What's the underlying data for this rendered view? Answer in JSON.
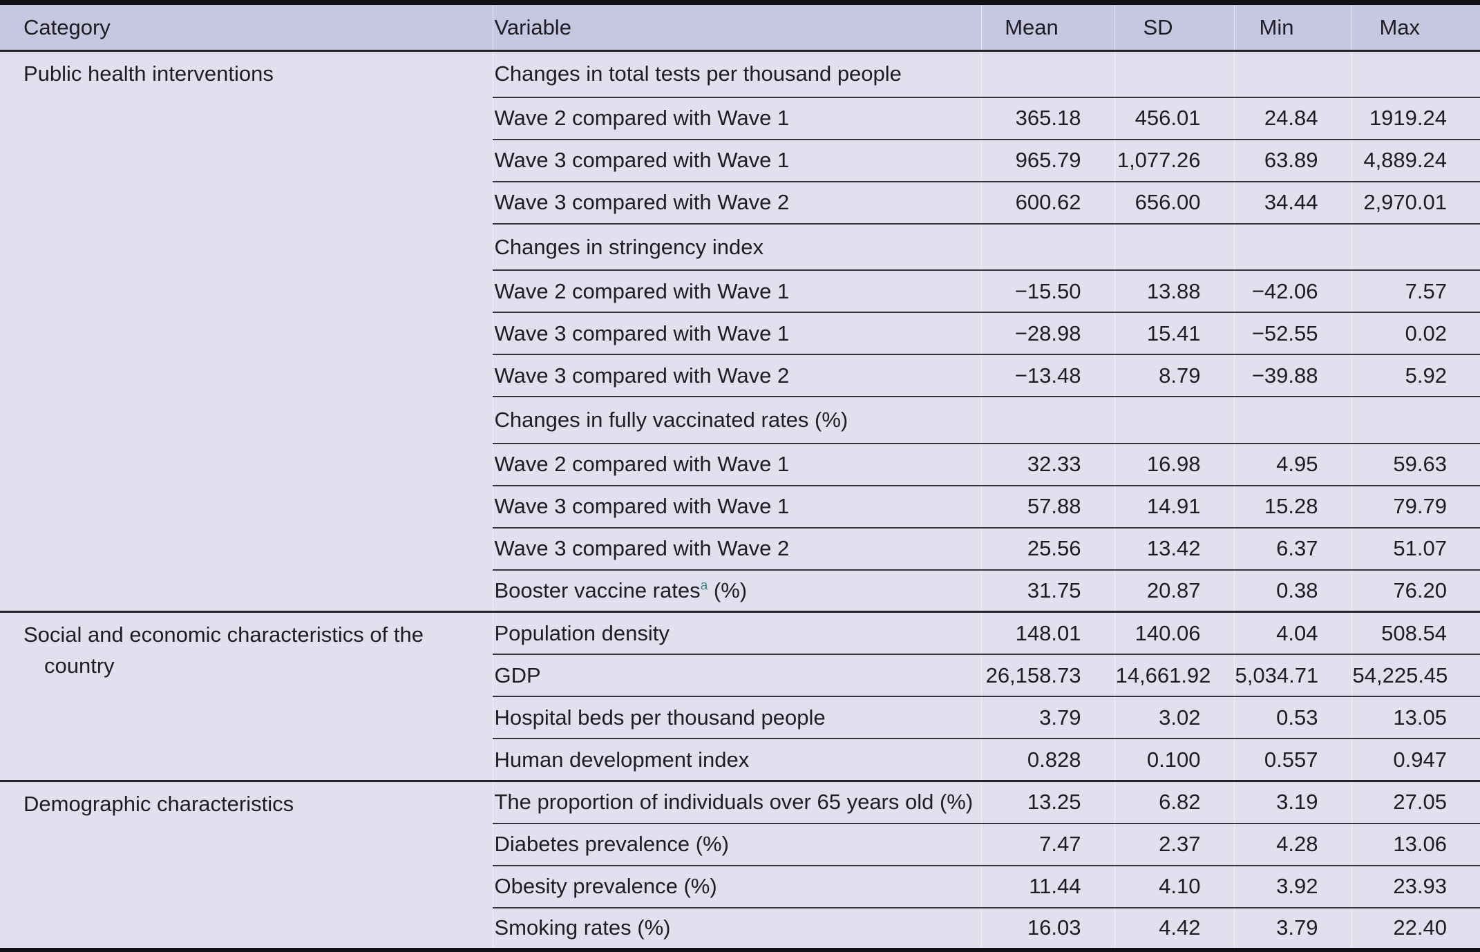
{
  "table": {
    "columns": [
      "Category",
      "Variable",
      "Mean",
      "SD",
      "Min",
      "Max"
    ],
    "colors": {
      "header_bg": "#c7c7e1",
      "body_bg": "#e0e0ef",
      "thick_border": "#121216",
      "section_rule": "#24242a",
      "row_rule": "#34343c",
      "text": "#1d1d22",
      "superscript": "#3f8786"
    },
    "sections": [
      {
        "category": "Public health interventions",
        "rows": [
          {
            "variable": "Changes in total tests per thousand people",
            "group": true,
            "mean": "",
            "sd": "",
            "min": "",
            "max": ""
          },
          {
            "variable": "Wave 2 compared with Wave 1",
            "mean": "365.18",
            "sd": "456.01",
            "min": "24.84",
            "max": "1919.24"
          },
          {
            "variable": "Wave 3 compared with Wave 1",
            "mean": "965.79",
            "sd": "1,077.26",
            "min": "63.89",
            "max": "4,889.24"
          },
          {
            "variable": "Wave 3 compared with Wave 2",
            "mean": "600.62",
            "sd": "656.00",
            "min": "34.44",
            "max": "2,970.01"
          },
          {
            "variable": "Changes in stringency index",
            "group": true,
            "mean": "",
            "sd": "",
            "min": "",
            "max": ""
          },
          {
            "variable": "Wave 2 compared with Wave 1",
            "mean": "−15.50",
            "sd": "13.88",
            "min": "−42.06",
            "max": "7.57"
          },
          {
            "variable": "Wave 3 compared with Wave 1",
            "mean": "−28.98",
            "sd": "15.41",
            "min": "−52.55",
            "max": "0.02"
          },
          {
            "variable": "Wave 3 compared with Wave 2",
            "mean": "−13.48",
            "sd": "8.79",
            "min": "−39.88",
            "max": "5.92"
          },
          {
            "variable": "Changes in fully vaccinated rates (%)",
            "group": true,
            "mean": "",
            "sd": "",
            "min": "",
            "max": ""
          },
          {
            "variable": "Wave 2 compared with Wave 1",
            "mean": "32.33",
            "sd": "16.98",
            "min": "4.95",
            "max": "59.63"
          },
          {
            "variable": "Wave 3 compared with Wave 1",
            "mean": "57.88",
            "sd": "14.91",
            "min": "15.28",
            "max": "79.79"
          },
          {
            "variable": "Wave 3 compared with Wave 2",
            "mean": "25.56",
            "sd": "13.42",
            "min": "6.37",
            "max": "51.07"
          },
          {
            "variable": "Booster vaccine rates",
            "sup": "a",
            "suffix": " (%)",
            "mean": "31.75",
            "sd": "20.87",
            "min": "0.38",
            "max": "76.20"
          }
        ]
      },
      {
        "category": "Social and economic characteristics of the country",
        "rows": [
          {
            "variable": "Population density",
            "mean": "148.01",
            "sd": "140.06",
            "min": "4.04",
            "max": "508.54"
          },
          {
            "variable": "GDP",
            "mean": "26,158.73",
            "sd": "14,661.92",
            "min": "5,034.71",
            "max": "54,225.45"
          },
          {
            "variable": "Hospital beds per thousand people",
            "mean": "3.79",
            "sd": "3.02",
            "min": "0.53",
            "max": "13.05"
          },
          {
            "variable": "Human development index",
            "mean": "0.828",
            "sd": "0.100",
            "min": "0.557",
            "max": "0.947"
          }
        ]
      },
      {
        "category": "Demographic characteristics",
        "rows": [
          {
            "variable": "The proportion of individuals over 65 years old (%)",
            "mean": "13.25",
            "sd": "6.82",
            "min": "3.19",
            "max": "27.05"
          },
          {
            "variable": "Diabetes prevalence (%)",
            "mean": "7.47",
            "sd": "2.37",
            "min": "4.28",
            "max": "13.06"
          },
          {
            "variable": "Obesity prevalence (%)",
            "mean": "11.44",
            "sd": "4.10",
            "min": "3.92",
            "max": "23.93"
          },
          {
            "variable": "Smoking rates (%)",
            "mean": "16.03",
            "sd": "4.42",
            "min": "3.79",
            "max": "22.40"
          }
        ]
      }
    ]
  }
}
